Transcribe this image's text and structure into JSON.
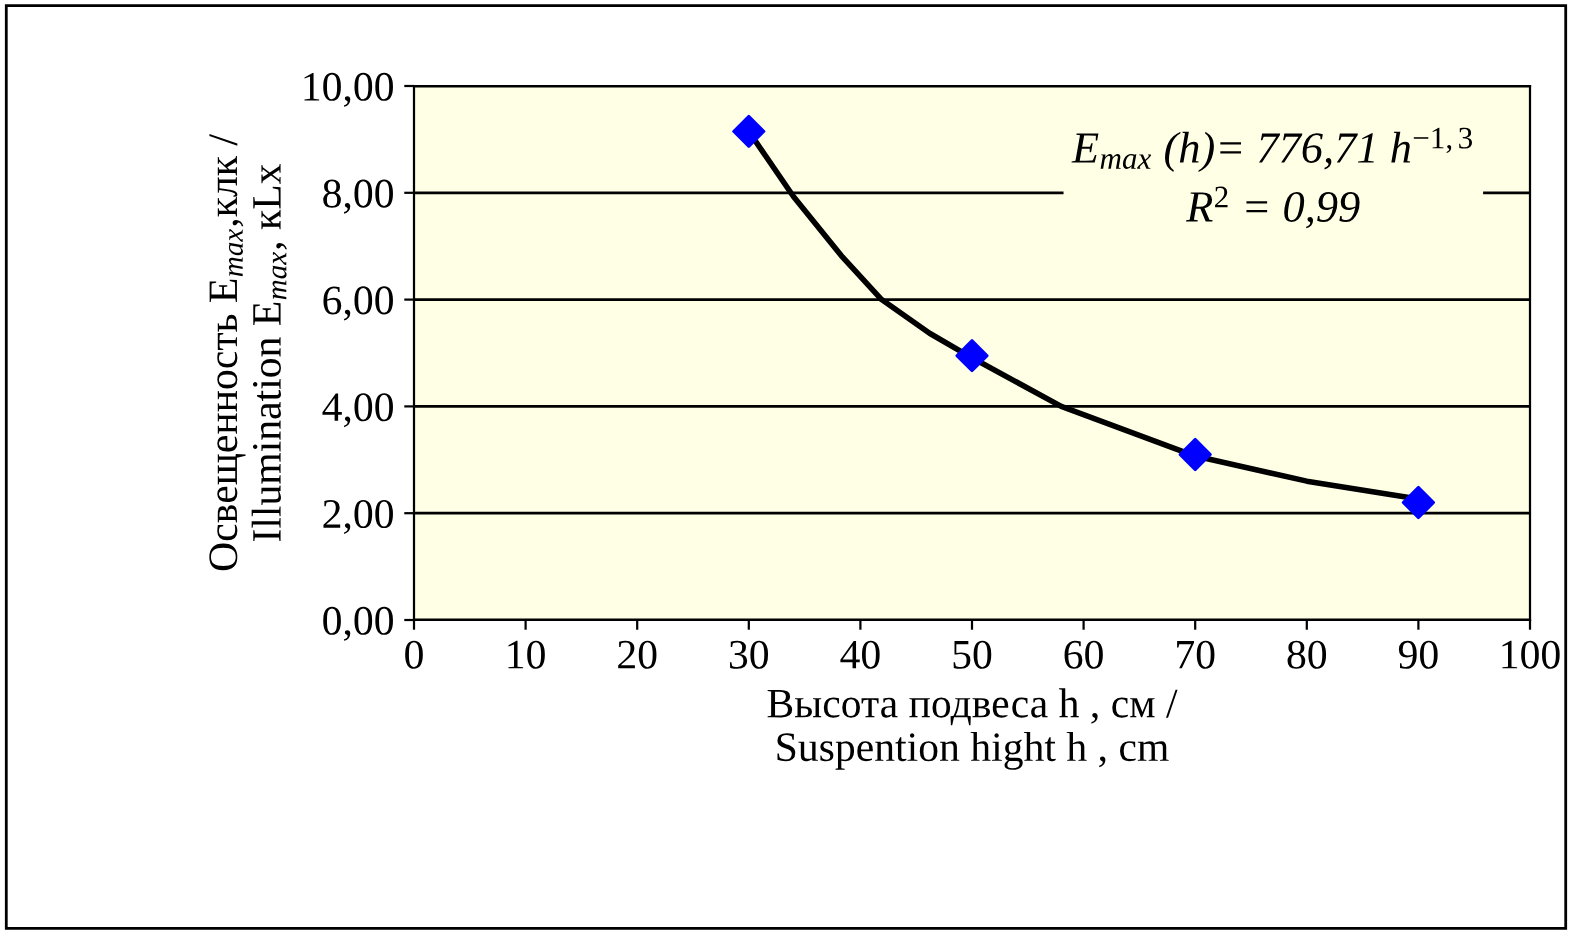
{
  "chart_data": {
    "type": "scatter",
    "xlabel": "Высота подвеса h , см /\nSuspention hight h , cm",
    "ylabel": "Освещенность E$_{max}$,клк /\nIllumination E$_{max}$, кLх",
    "xlim": [
      0,
      100
    ],
    "xticks": [
      0,
      10,
      20,
      30,
      40,
      50,
      60,
      70,
      80,
      90,
      100
    ],
    "ylim": [
      0,
      10
    ],
    "yticks": [
      {
        "value": 0,
        "label": "0,00"
      },
      {
        "value": 2,
        "label": "2,00"
      },
      {
        "value": 4,
        "label": "4,00"
      },
      {
        "value": 6,
        "label": "6,00"
      },
      {
        "value": 8,
        "label": "8,00"
      },
      {
        "value": 10,
        "label": "10,00"
      }
    ],
    "grid": "y",
    "legend": false,
    "series": [
      {
        "marker": "diamond",
        "color": "#0000ff",
        "x": [
          30,
          50,
          70,
          90
        ],
        "values": [
          9.15,
          4.95,
          3.1,
          2.2
        ]
      },
      {
        "type": "line",
        "marker": "none",
        "line_style": "solid",
        "color": "#000000",
        "x": [
          30,
          34,
          38.3,
          41.9,
          46.2,
          50,
          58,
          70,
          80,
          89.6
        ],
        "values": [
          9.15,
          7.93,
          6.82,
          6.0,
          5.37,
          4.91,
          4.0,
          3.07,
          2.6,
          2.28
        ]
      }
    ],
    "annotations": [
      "E$_{max}$ (h)= 776,71 h$^{−1,3}$",
      "R$^{2}$ = 0,99"
    ]
  }
}
